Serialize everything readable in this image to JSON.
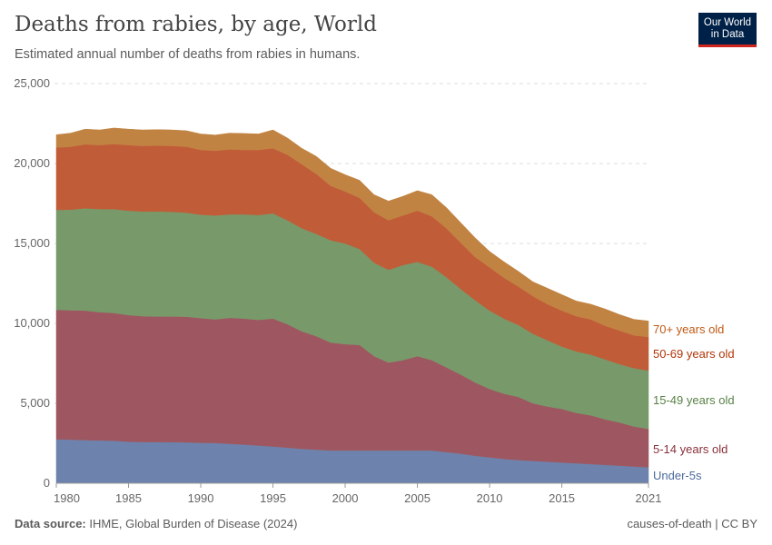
{
  "header": {
    "title": "Deaths from rabies, by age, World",
    "subtitle": "Estimated annual number of deaths from rabies in humans.",
    "logo": "Our World in Data",
    "logo_line1": "Our World",
    "logo_line2": "in Data"
  },
  "footer": {
    "source_label": "Data source:",
    "source": "IHME, Global Burden of Disease (2024)",
    "license": "causes-of-death | CC BY"
  },
  "chart_data": {
    "type": "area",
    "stacked": true,
    "title": "Deaths from rabies, by age, World",
    "xlabel": "",
    "ylabel": "",
    "ylim": [
      0,
      25000
    ],
    "xlim": [
      1980,
      2021
    ],
    "grid": "horizontal dashed",
    "legend": "right, inline labels at series ends",
    "y_ticks": [
      "0",
      "5,000",
      "10,000",
      "15,000",
      "20,000",
      "25,000"
    ],
    "y_tick_values": [
      0,
      5000,
      10000,
      15000,
      20000,
      25000
    ],
    "x_ticks": [
      "1980",
      "1985",
      "1990",
      "1995",
      "2000",
      "2005",
      "2010",
      "2015",
      "2021"
    ],
    "x_tick_values": [
      1980,
      1985,
      1990,
      1995,
      2000,
      2005,
      2010,
      2015,
      2021
    ],
    "x": [
      1980,
      1981,
      1982,
      1983,
      1984,
      1985,
      1986,
      1987,
      1988,
      1989,
      1990,
      1991,
      1992,
      1993,
      1994,
      1995,
      1996,
      1997,
      1998,
      1999,
      2000,
      2001,
      2002,
      2003,
      2004,
      2005,
      2006,
      2007,
      2008,
      2009,
      2010,
      2011,
      2012,
      2013,
      2014,
      2015,
      2016,
      2017,
      2018,
      2019,
      2020,
      2021
    ],
    "series": [
      {
        "name": "Under-5s",
        "color": "#6D83AD",
        "label_color": "#4C6A9C",
        "values": [
          2750,
          2730,
          2700,
          2680,
          2660,
          2600,
          2580,
          2580,
          2570,
          2560,
          2530,
          2520,
          2470,
          2420,
          2360,
          2300,
          2230,
          2150,
          2100,
          2050,
          2050,
          2050,
          2050,
          2050,
          2050,
          2050,
          2050,
          1950,
          1850,
          1720,
          1620,
          1520,
          1450,
          1400,
          1350,
          1300,
          1250,
          1200,
          1150,
          1100,
          1050,
          1000
        ]
      },
      {
        "name": "5-14 years old",
        "color": "#9E5760",
        "label_color": "#883039",
        "values": [
          8100,
          8090,
          8100,
          8020,
          7990,
          7920,
          7870,
          7850,
          7860,
          7860,
          7800,
          7730,
          7880,
          7880,
          7860,
          8000,
          7720,
          7350,
          7100,
          6750,
          6650,
          6600,
          5900,
          5500,
          5650,
          5900,
          5650,
          5300,
          4950,
          4580,
          4280,
          4080,
          3950,
          3600,
          3450,
          3350,
          3150,
          3050,
          2850,
          2700,
          2500,
          2400
        ]
      },
      {
        "name": "15-49 years old",
        "color": "#78996A",
        "label_color": "#578145",
        "values": [
          6250,
          6300,
          6400,
          6450,
          6500,
          6530,
          6550,
          6570,
          6550,
          6510,
          6470,
          6500,
          6470,
          6520,
          6560,
          6580,
          6500,
          6450,
          6400,
          6400,
          6300,
          6000,
          5850,
          5800,
          5950,
          5900,
          5850,
          5650,
          5350,
          5150,
          4900,
          4700,
          4500,
          4350,
          4150,
          3900,
          3850,
          3800,
          3750,
          3650,
          3650,
          3650
        ]
      },
      {
        "name": "50-69 years old",
        "color": "#C15C38",
        "label_color": "#B13507",
        "values": [
          3900,
          3930,
          4000,
          4000,
          4070,
          4100,
          4100,
          4120,
          4120,
          4120,
          4050,
          4050,
          4060,
          4030,
          4070,
          4070,
          4100,
          4000,
          3750,
          3400,
          3250,
          3200,
          3150,
          3100,
          3100,
          3200,
          3150,
          3050,
          2900,
          2700,
          2700,
          2550,
          2400,
          2350,
          2250,
          2250,
          2200,
          2200,
          2100,
          2100,
          2050,
          2100
        ]
      },
      {
        "name": "70+ years old",
        "color": "#C18342",
        "label_color": "#BE5915",
        "values": [
          800,
          850,
          950,
          950,
          1000,
          1000,
          1000,
          1000,
          1000,
          1000,
          1000,
          980,
          1020,
          1030,
          1000,
          1150,
          1050,
          1000,
          1100,
          1100,
          1050,
          1100,
          1100,
          1200,
          1200,
          1250,
          1350,
          1300,
          1250,
          1200,
          1000,
          1000,
          950,
          900,
          1000,
          1000,
          950,
          950,
          1050,
          1000,
          1000,
          1000
        ]
      }
    ]
  }
}
